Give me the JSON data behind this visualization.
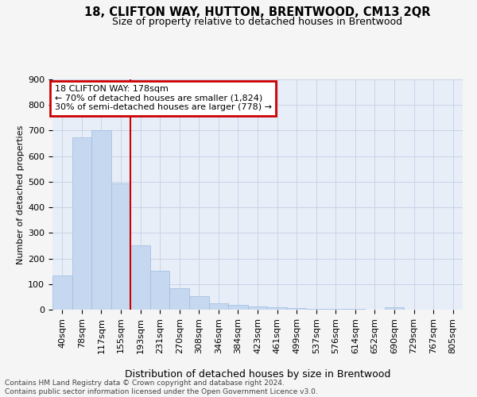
{
  "title": "18, CLIFTON WAY, HUTTON, BRENTWOOD, CM13 2QR",
  "subtitle": "Size of property relative to detached houses in Brentwood",
  "xlabel": "Distribution of detached houses by size in Brentwood",
  "ylabel": "Number of detached properties",
  "footer_line1": "Contains HM Land Registry data © Crown copyright and database right 2024.",
  "footer_line2": "Contains public sector information licensed under the Open Government Licence v3.0.",
  "bin_labels": [
    "40sqm",
    "78sqm",
    "117sqm",
    "155sqm",
    "193sqm",
    "231sqm",
    "270sqm",
    "308sqm",
    "346sqm",
    "384sqm",
    "423sqm",
    "461sqm",
    "499sqm",
    "537sqm",
    "576sqm",
    "614sqm",
    "652sqm",
    "690sqm",
    "729sqm",
    "767sqm",
    "805sqm"
  ],
  "bar_values": [
    135,
    675,
    700,
    493,
    250,
    153,
    84,
    52,
    26,
    20,
    13,
    10,
    5,
    4,
    3,
    2,
    1,
    8,
    1,
    1,
    0
  ],
  "bar_color": "#c5d8f0",
  "bar_edge_color": "#9bbce0",
  "red_line_bin": 4,
  "annotation_text": "18 CLIFTON WAY: 178sqm\n← 70% of detached houses are smaller (1,824)\n30% of semi-detached houses are larger (778) →",
  "annotation_box_color": "#ffffff",
  "annotation_box_edge_color": "#cc0000",
  "red_line_color": "#cc0000",
  "grid_color": "#c8d4e8",
  "plot_bg_color": "#e8eef8",
  "fig_bg_color": "#f5f5f5",
  "ylim": [
    0,
    900
  ],
  "yticks": [
    0,
    100,
    200,
    300,
    400,
    500,
    600,
    700,
    800,
    900
  ],
  "title_fontsize": 10.5,
  "subtitle_fontsize": 9,
  "xlabel_fontsize": 9,
  "ylabel_fontsize": 8,
  "tick_fontsize": 8,
  "annotation_fontsize": 8,
  "footer_fontsize": 6.5
}
